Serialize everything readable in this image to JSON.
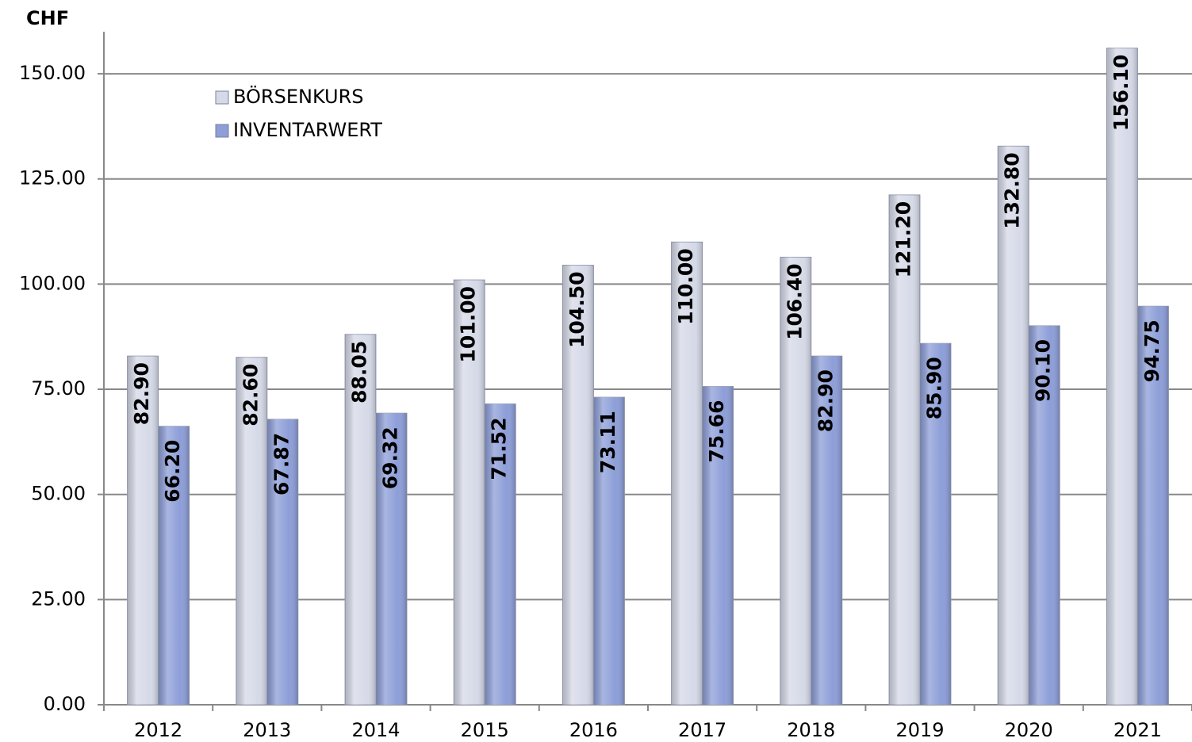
{
  "chart_data": {
    "type": "bar",
    "y_unit_label": "CHF",
    "categories": [
      "2012",
      "2013",
      "2014",
      "2015",
      "2016",
      "2017",
      "2018",
      "2019",
      "2020",
      "2021"
    ],
    "series": [
      {
        "name": "BÖRSENKURS",
        "color": "#d6dae8",
        "values": [
          82.9,
          82.6,
          88.05,
          101,
          104.5,
          110,
          106.4,
          121.2,
          132.8,
          156.1
        ],
        "value_labels": [
          "82.90",
          "82.60",
          "88.05",
          "101.00",
          "104.50",
          "110.00",
          "106.40",
          "121.20",
          "132.80",
          "156.10"
        ]
      },
      {
        "name": "INVENTARWERT",
        "color": "#8d9ed8",
        "values": [
          66.2,
          67.87,
          69.32,
          71.52,
          73.11,
          75.66,
          82.9,
          85.9,
          90.1,
          94.75
        ],
        "value_labels": [
          "66.20",
          "67.87",
          "69.32",
          "71.52",
          "73.11",
          "75.66",
          "82.90",
          "85.90",
          "90.10",
          "94.75"
        ]
      }
    ],
    "ylim": [
      0,
      160
    ],
    "yticks": [
      {
        "value": 0,
        "label": "0.00"
      },
      {
        "value": 25,
        "label": "25.00"
      },
      {
        "value": 50,
        "label": "50.00"
      },
      {
        "value": 75,
        "label": "75.00"
      },
      {
        "value": 100,
        "label": "100.00"
      },
      {
        "value": 125,
        "label": "125.00"
      },
      {
        "value": 150,
        "label": "150.00"
      }
    ],
    "grid": true,
    "legend": "top-left"
  }
}
